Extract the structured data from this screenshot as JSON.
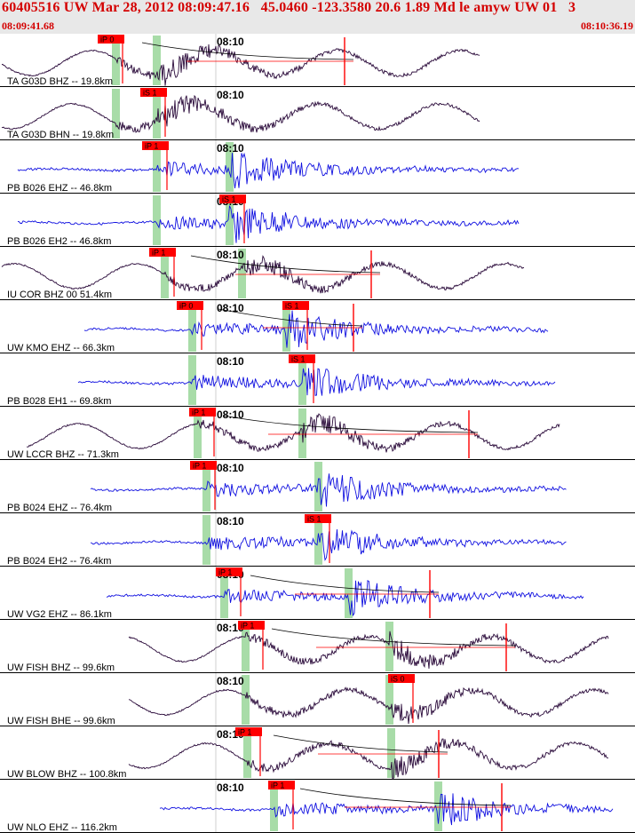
{
  "header": {
    "title": "60405516 UW Mar 28, 2012 08:09:47.16   45.0460 -123.3580 20.6 1.89 Md le amyw UW 01   3",
    "time_start": "08:09:41.68",
    "time_end": "08:10:36.19"
  },
  "minute_label": "08:10",
  "colors": {
    "title": "#d40000",
    "header_bg": "#e8e8e8",
    "trace_vertical": "#2a0a3a",
    "trace_horizontal": "#1010e0",
    "pick_flag": "#ff0000",
    "pick_window": "#a8dca8",
    "theory_curve": "#000000"
  },
  "traces": [
    {
      "label": "TA G03D BHZ -- 19.8km",
      "type": "lp",
      "picks": [
        {
          "text": "iP 0"
        }
      ],
      "windows": 2
    },
    {
      "label": "TA G03D BHN -- 19.8km",
      "type": "lp",
      "picks": [
        {
          "text": "iS 1"
        }
      ],
      "windows": 2
    },
    {
      "label": "PB B026 EHZ -- 46.8km",
      "type": "hf",
      "picks": [
        {
          "text": "iP 1"
        }
      ],
      "windows": 2
    },
    {
      "label": "PB B026 EH2 -- 46.8km",
      "type": "hf",
      "picks": [
        {
          "text": "iS 1"
        }
      ],
      "windows": 2
    },
    {
      "label": "IU COR BHZ 00 51.4km",
      "type": "lp",
      "picks": [
        {
          "text": "iP 1"
        }
      ],
      "windows": 2
    },
    {
      "label": "UW KMO EHZ -- 66.3km",
      "type": "hf",
      "picks": [
        {
          "text": "iP 0"
        },
        {
          "text": "iS 1"
        }
      ],
      "windows": 2
    },
    {
      "label": "PB B028 EH1 -- 69.8km",
      "type": "hf",
      "picks": [
        {
          "text": "iS 1"
        }
      ],
      "windows": 2
    },
    {
      "label": "UW LCCR BHZ -- 71.3km",
      "type": "lp",
      "picks": [
        {
          "text": "iP 1"
        }
      ],
      "windows": 2
    },
    {
      "label": "PB B024 EHZ -- 76.4km",
      "type": "hf",
      "picks": [
        {
          "text": "iP 1"
        }
      ],
      "windows": 2
    },
    {
      "label": "PB B024 EH2 -- 76.4km",
      "type": "hf",
      "picks": [
        {
          "text": "iS 1"
        }
      ],
      "windows": 2
    },
    {
      "label": "UW VG2 EHZ -- 86.1km",
      "type": "hf",
      "picks": [
        {
          "text": "iP 1"
        }
      ],
      "windows": 2
    },
    {
      "label": "UW FISH BHZ -- 99.6km",
      "type": "lp",
      "picks": [
        {
          "text": "iP 1"
        }
      ],
      "windows": 2
    },
    {
      "label": "UW FISH BHE -- 99.6km",
      "type": "lp",
      "picks": [
        {
          "text": "iS 0"
        }
      ],
      "windows": 2
    },
    {
      "label": "UW BLOW BHZ -- 100.8km",
      "type": "lp",
      "picks": [
        {
          "text": "iP 1"
        }
      ],
      "windows": 2
    },
    {
      "label": "UW NLO EHZ -- 116.2km",
      "type": "hf",
      "picks": [
        {
          "text": "iP 1"
        }
      ],
      "windows": 2
    }
  ]
}
